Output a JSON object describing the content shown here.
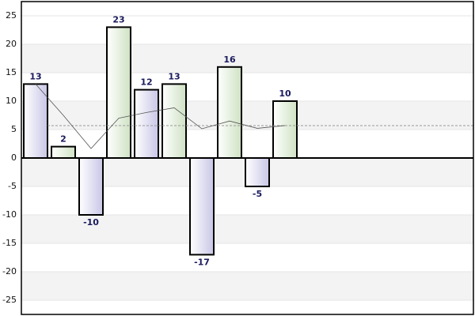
{
  "chart_data": {
    "type": "bar",
    "categories": [
      null,
      null,
      null,
      null,
      null,
      null,
      null,
      null,
      null,
      null
    ],
    "values": [
      13,
      2,
      -10,
      23,
      12,
      13,
      -17,
      16,
      -5,
      10
    ],
    "colors": [
      "#d6d4ee",
      "#dcebd2",
      "#d6d4ee",
      "#dcebd2",
      "#d6d4ee",
      "#dcebd2",
      "#d6d4ee",
      "#dcebd2",
      "#d6d4ee",
      "#dcebd2"
    ],
    "trend": [
      13,
      7.5,
      1.67,
      7,
      8,
      8.83,
      5.14,
      6.5,
      5.22,
      5.7
    ],
    "average": 5.7,
    "ylim": [
      -27.5,
      27.5
    ],
    "yticks": [
      -25,
      -20,
      -15,
      -10,
      -5,
      0,
      5,
      10,
      15,
      20,
      25
    ]
  }
}
